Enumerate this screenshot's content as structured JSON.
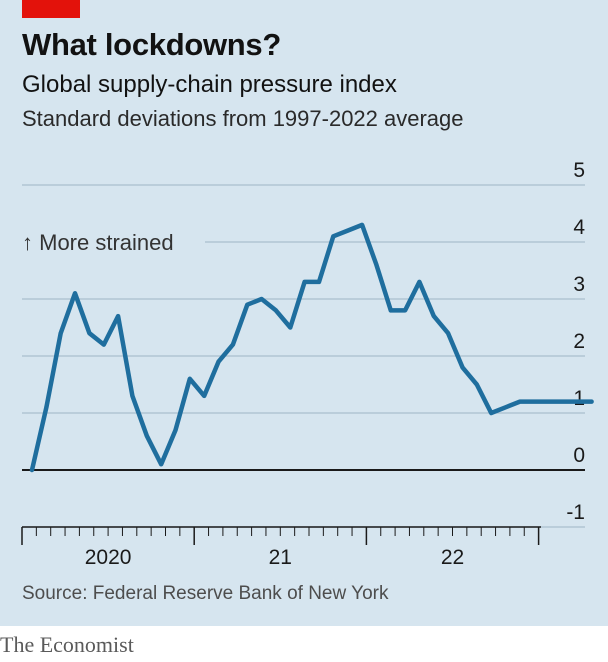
{
  "header": {
    "title": "What lockdowns?",
    "subtitle": "Global supply-chain pressure index",
    "unit_note": "Standard deviations from 1997-2022 average"
  },
  "footer": {
    "source": "Source: Federal Reserve Bank of New York",
    "brand": "The Economist"
  },
  "colors": {
    "background": "#d6e5ef",
    "line": "#1f6e9e",
    "grid": "#a9bfcd",
    "zero_line": "#1a1a1a",
    "brand_tag": "#e3120b"
  },
  "chart_data": {
    "type": "line",
    "title": "Global supply-chain pressure index",
    "ylabel": "Standard deviations from 1997-2022 average",
    "ylim": [
      -1,
      5
    ],
    "y_ticks": [
      "5",
      "4",
      "3",
      "2",
      "1",
      "0",
      "-1"
    ],
    "x_tick_labels": [
      "2020",
      "21",
      "22"
    ],
    "annotation": "↑ More strained",
    "grid": true,
    "series": [
      {
        "x": [
          "2019-07",
          "2019-08",
          "2019-09",
          "2019-10",
          "2019-11",
          "2019-12",
          "2020-01",
          "2020-02",
          "2020-03",
          "2020-04",
          "2020-05",
          "2020-06",
          "2020-07",
          "2020-08",
          "2020-09",
          "2020-10",
          "2020-11",
          "2020-12",
          "2021-01",
          "2021-02",
          "2021-03",
          "2021-04",
          "2021-05",
          "2021-06",
          "2021-07",
          "2021-08",
          "2021-09",
          "2021-10",
          "2021-11",
          "2021-12",
          "2022-01",
          "2022-02",
          "2022-03",
          "2022-04",
          "2022-05",
          "2022-06",
          "2022-07",
          "2022-08",
          "2022-09",
          "2022-10"
        ],
        "values": [
          0.0,
          1.1,
          2.4,
          3.1,
          2.4,
          2.2,
          2.7,
          1.3,
          0.6,
          0.1,
          0.7,
          1.6,
          1.3,
          1.9,
          2.2,
          2.9,
          3.0,
          2.8,
          2.5,
          3.3,
          3.3,
          4.1,
          4.2,
          4.3,
          3.6,
          2.8,
          2.8,
          3.3,
          2.7,
          2.4,
          1.8,
          1.5,
          1.0,
          1.1,
          1.2,
          1.2,
          1.2,
          1.2,
          1.2,
          1.2
        ]
      }
    ]
  }
}
